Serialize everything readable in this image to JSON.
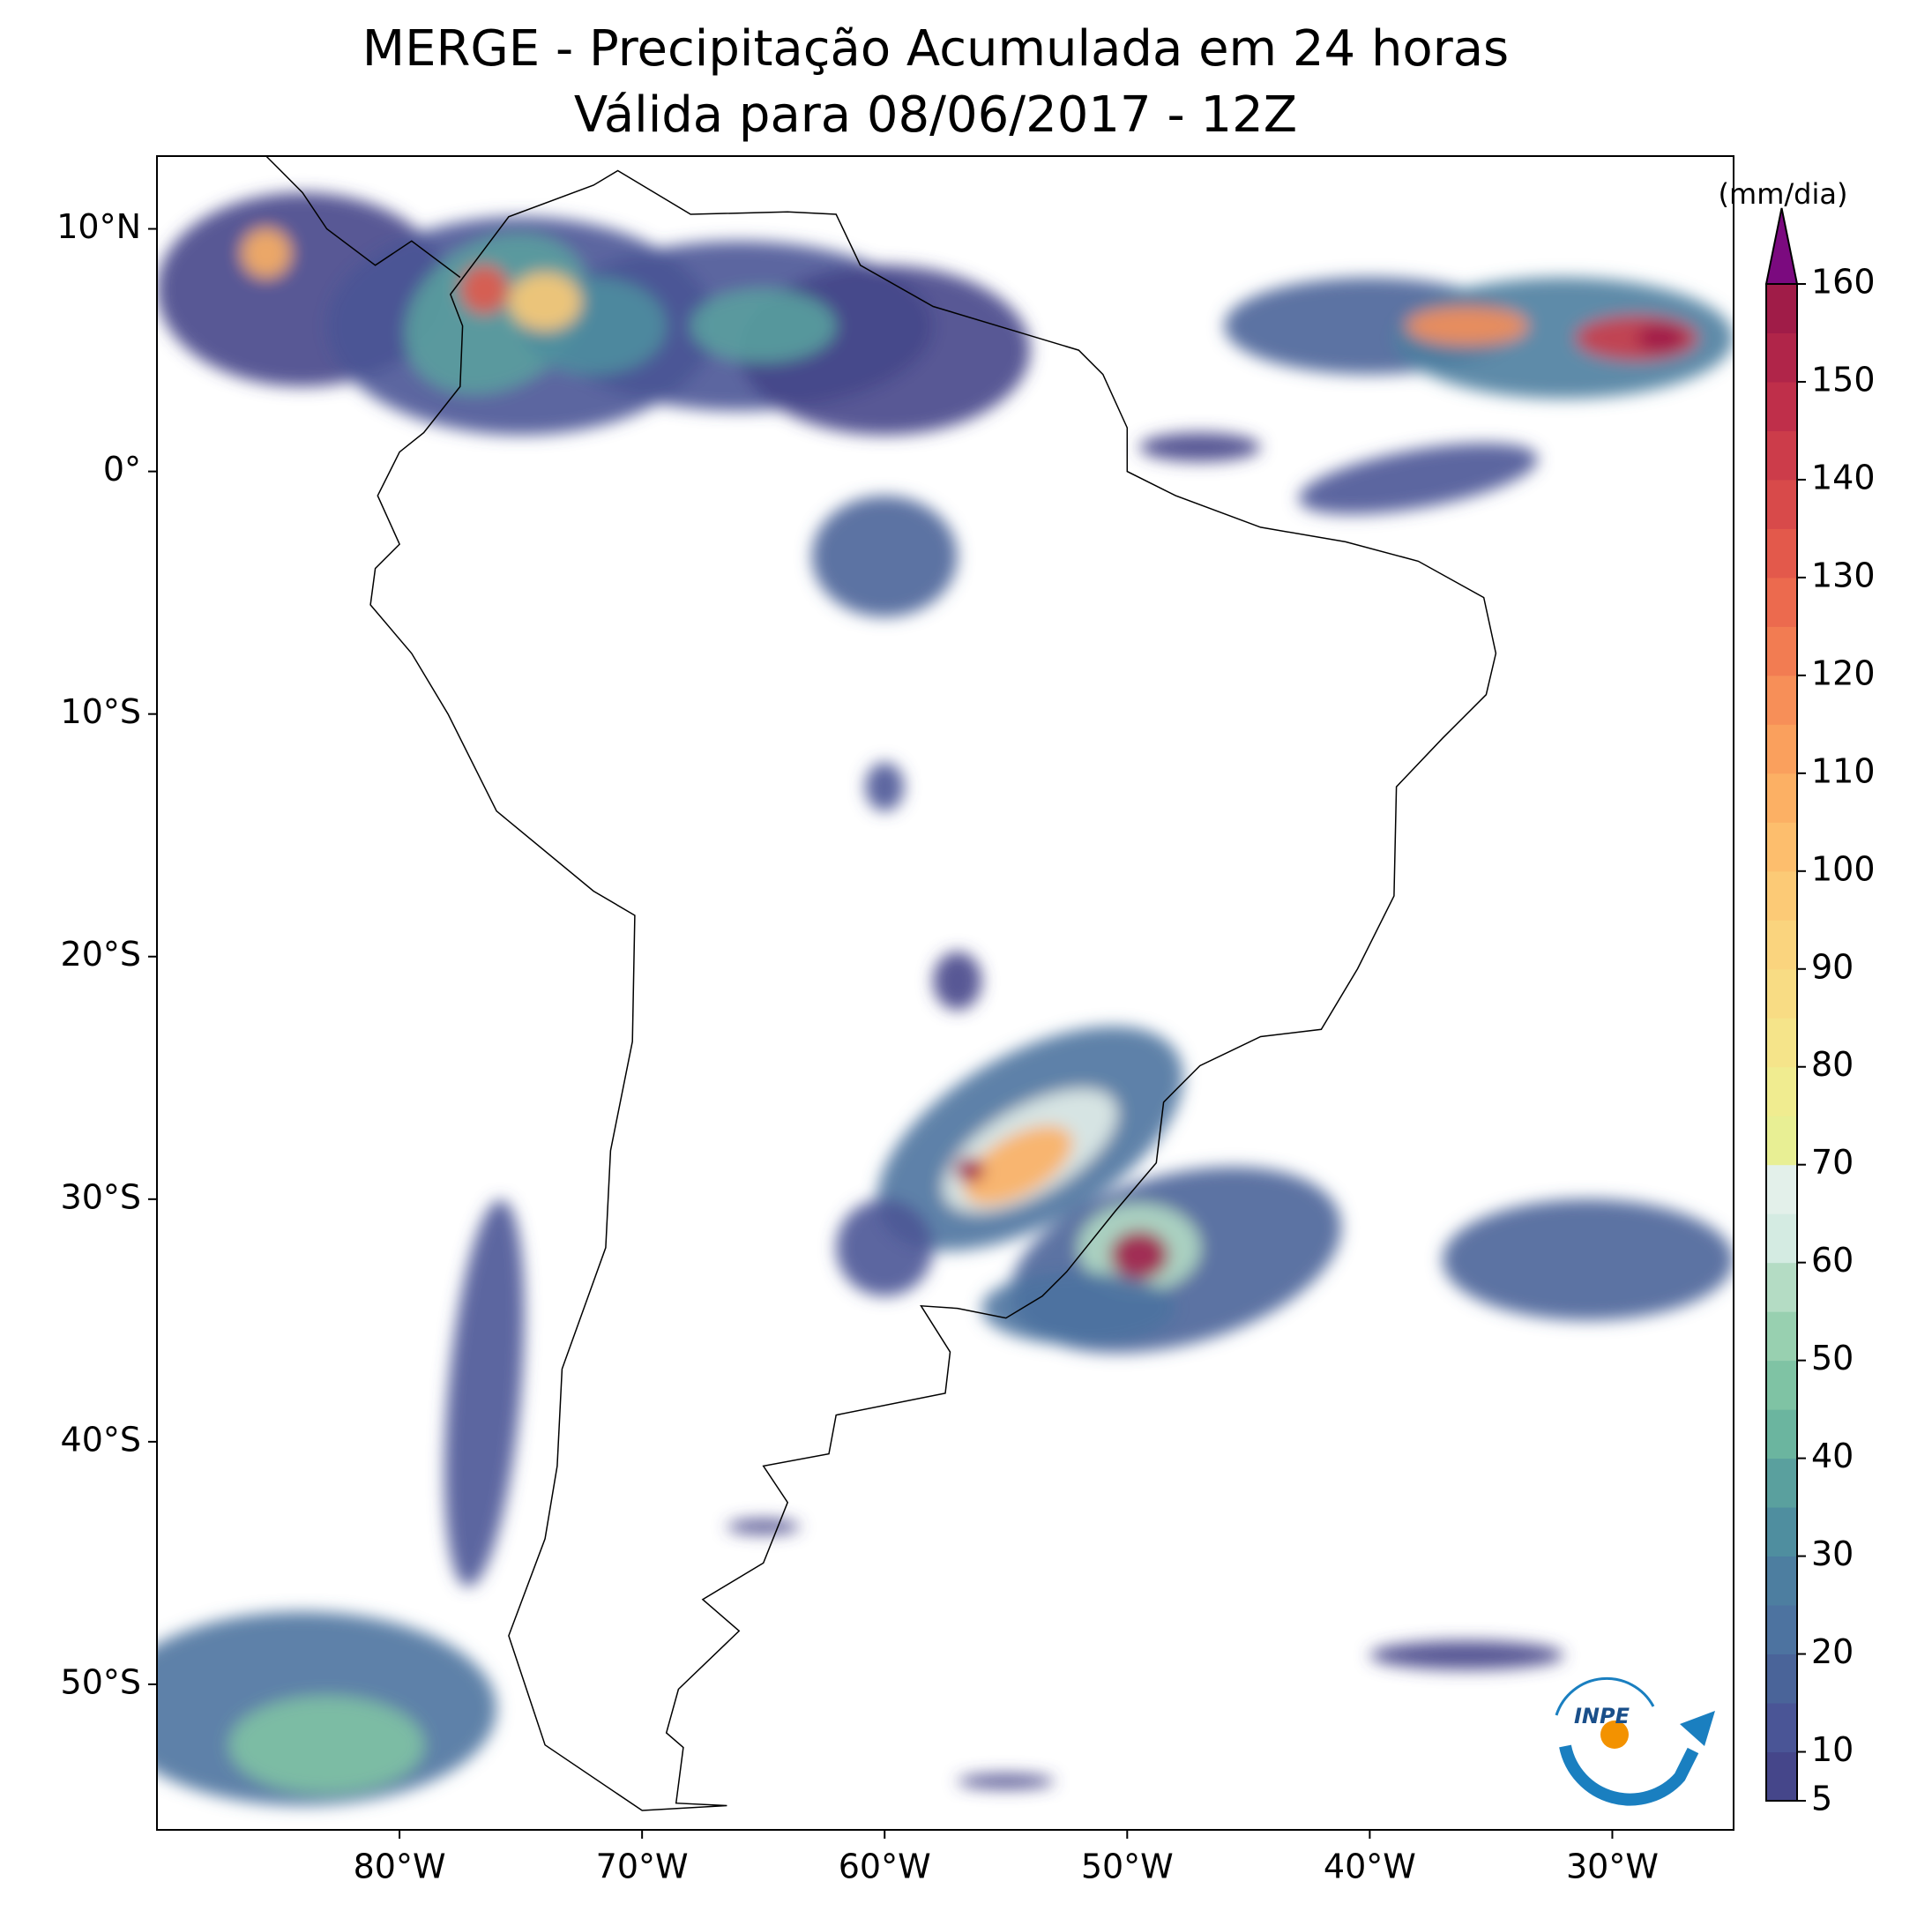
{
  "chart_data": {
    "type": "map",
    "title": "MERGE - Precipitação Acumulada em 24 horas",
    "subtitle": "Válida para 08/06/2017 - 12Z",
    "xlim": [
      -90,
      -25
    ],
    "ylim": [
      -56,
      13
    ],
    "xticks": [
      {
        "value": -80,
        "label": "80°W"
      },
      {
        "value": -70,
        "label": "70°W"
      },
      {
        "value": -60,
        "label": "60°W"
      },
      {
        "value": -50,
        "label": "50°W"
      },
      {
        "value": -40,
        "label": "40°W"
      },
      {
        "value": -30,
        "label": "30°W"
      }
    ],
    "yticks": [
      {
        "value": 10,
        "label": "10°N"
      },
      {
        "value": 0,
        "label": "0°"
      },
      {
        "value": -10,
        "label": "10°S"
      },
      {
        "value": -20,
        "label": "20°S"
      },
      {
        "value": -30,
        "label": "30°S"
      },
      {
        "value": -40,
        "label": "40°S"
      },
      {
        "value": -50,
        "label": "50°S"
      }
    ],
    "colorbar": {
      "label": "(mm/dia)",
      "lim": [
        5,
        160
      ],
      "ticks": [
        5,
        10,
        20,
        30,
        40,
        50,
        60,
        70,
        80,
        90,
        100,
        110,
        120,
        130,
        140,
        150,
        160
      ],
      "colors": [
        "#45468a",
        "#4a5596",
        "#4a6499",
        "#4d73a0",
        "#4d7ea0",
        "#4f8e9f",
        "#5aa09e",
        "#6bb59f",
        "#7fc3a4",
        "#98d0b0",
        "#b4dcc4",
        "#d4ebe2",
        "#e3f0ea",
        "#e8ef94",
        "#f0ec90",
        "#f5e48a",
        "#f8dc84",
        "#fad47e",
        "#fcca76",
        "#fdbe6d",
        "#fcb064",
        "#faa05d",
        "#f78f58",
        "#f27c52",
        "#ec6a4e",
        "#e3594b",
        "#d84a4a",
        "#cc3c4a",
        "#bf2f4a",
        "#b02549",
        "#a01c48"
      ],
      "over_color": "#7b0a7f"
    }
  }
}
